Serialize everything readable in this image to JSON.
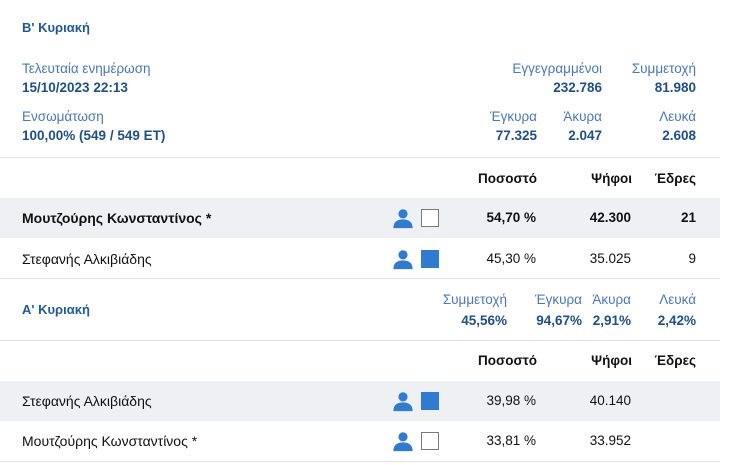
{
  "round2": {
    "title": "Β' Κυριακή",
    "last_update_label": "Τελευταία ενημέρωση",
    "last_update_value": "15/10/2023 22:13",
    "registered_label": "Εγγεγραμμένοι",
    "registered_value": "232.786",
    "turnout_label": "Συμμετοχή",
    "turnout_value": "81.980",
    "incorporation_label": "Ενσωμάτωση",
    "incorporation_value": "100,00% (549 / 549 ΕΤ)",
    "valid_label": "Έγκυρα",
    "valid_value": "77.325",
    "invalid_label": "Άκυρα",
    "invalid_value": "2.047",
    "blank_label": "Λευκά",
    "blank_value": "2.608",
    "columns": {
      "percent": "Ποσοστό",
      "votes": "Ψήφοι",
      "seats": "Έδρες"
    },
    "candidates": [
      {
        "name": "Μουτζούρης Κωνσταντίνος *",
        "percent": "54,70 %",
        "votes": "42.300",
        "seats": "21",
        "swatch": "empty"
      },
      {
        "name": "Στεφανής Αλκιβιάδης",
        "percent": "45,30 %",
        "votes": "35.025",
        "seats": "9",
        "swatch": "filled"
      }
    ]
  },
  "round1": {
    "title": "Α' Κυριακή",
    "turnout_label": "Συμμετοχή",
    "turnout_value": "45,56%",
    "valid_label": "Έγκυρα",
    "valid_value": "94,67%",
    "invalid_label": "Άκυρα",
    "invalid_value": "2,91%",
    "blank_label": "Λευκά",
    "blank_value": "2,42%",
    "columns": {
      "percent": "Ποσοστό",
      "votes": "Ψήφοι",
      "seats": "Έδρες"
    },
    "candidates": [
      {
        "name": "Στεφανής Αλκιβιάδης",
        "percent": "39,98 %",
        "votes": "40.140",
        "seats": "",
        "swatch": "filled"
      },
      {
        "name": "Μουτζούρης Κωνσταντίνος *",
        "percent": "33,81 %",
        "votes": "33.952",
        "seats": "",
        "swatch": "empty"
      }
    ]
  },
  "colors": {
    "accent": "#2e7bd1",
    "label_blue": "#4a78b5",
    "value_blue": "#1f4f86",
    "row_shade": "#eef0f3"
  },
  "icons": {
    "candidate": "person-icon"
  }
}
